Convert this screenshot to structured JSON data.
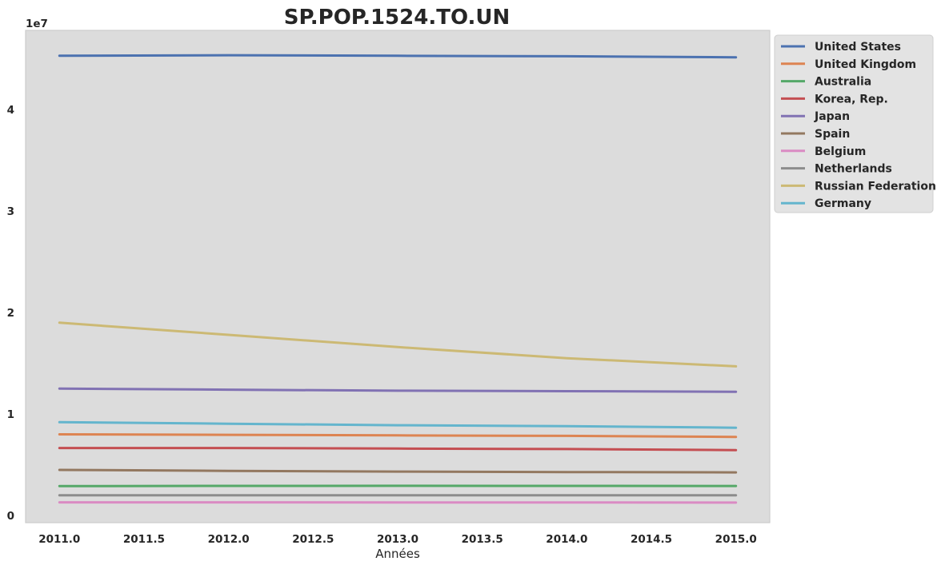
{
  "chart_data": {
    "type": "line",
    "title": "SP.POP.1524.TO.UN",
    "xlabel": "Années",
    "ylabel": "",
    "y_offset_label": "1e7",
    "y_scale": 10000000,
    "xlim": [
      2010.8,
      2015.2
    ],
    "ylim": [
      -0.07,
      4.78
    ],
    "x_ticks": [
      2011.0,
      2011.5,
      2012.0,
      2012.5,
      2013.0,
      2013.5,
      2014.0,
      2014.5,
      2015.0
    ],
    "x_tick_labels": [
      "2011.0",
      "2011.5",
      "2012.0",
      "2012.5",
      "2013.0",
      "2013.5",
      "2014.0",
      "2014.5",
      "2015.0"
    ],
    "y_ticks": [
      0,
      1,
      2,
      3,
      4
    ],
    "y_tick_labels": [
      "0",
      "1",
      "2",
      "3",
      "4"
    ],
    "grid": false,
    "legend_placement": "outside-top-right",
    "x": [
      2011,
      2012,
      2013,
      2014,
      2015
    ],
    "series": [
      {
        "name": "United States",
        "color": "#4c72b0",
        "values": [
          45300000,
          45350000,
          45300000,
          45250000,
          45150000
        ]
      },
      {
        "name": "United Kingdom",
        "color": "#dd8452",
        "values": [
          8000000,
          7950000,
          7900000,
          7850000,
          7750000
        ]
      },
      {
        "name": "Australia",
        "color": "#55a868",
        "values": [
          2900000,
          2920000,
          2930000,
          2920000,
          2910000
        ]
      },
      {
        "name": "Korea, Rep.",
        "color": "#c44e52",
        "values": [
          6650000,
          6650000,
          6600000,
          6550000,
          6450000
        ]
      },
      {
        "name": "Japan",
        "color": "#8172b3",
        "values": [
          12500000,
          12400000,
          12300000,
          12250000,
          12200000
        ]
      },
      {
        "name": "Spain",
        "color": "#937860",
        "values": [
          4500000,
          4400000,
          4330000,
          4280000,
          4250000
        ]
      },
      {
        "name": "Belgium",
        "color": "#da8bc3",
        "values": [
          1300000,
          1300000,
          1290000,
          1290000,
          1280000
        ]
      },
      {
        "name": "Netherlands",
        "color": "#8c8c8c",
        "values": [
          2000000,
          2000000,
          2000000,
          2000000,
          2000000
        ]
      },
      {
        "name": "Russian Federation",
        "color": "#ccb974",
        "values": [
          19000000,
          17800000,
          16600000,
          15500000,
          14700000
        ]
      },
      {
        "name": "Germany",
        "color": "#64b5cd",
        "values": [
          9200000,
          9050000,
          8900000,
          8800000,
          8650000
        ]
      }
    ]
  }
}
